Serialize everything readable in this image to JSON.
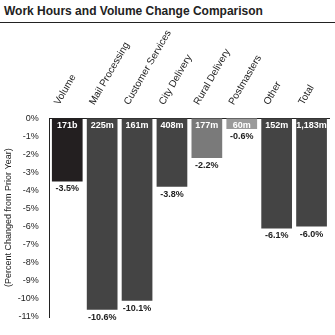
{
  "chart_data": {
    "type": "bar",
    "title": "Work Hours and Volume Change Comparison",
    "y_label": "(Percent Changed from Prior Year)",
    "categories": [
      "Volume",
      "Mail Processing",
      "Customer Services",
      "City Delivery",
      "Rural Delivery",
      "Postmasters",
      "Other",
      "Total"
    ],
    "values": [
      -3.5,
      -10.6,
      -10.1,
      -3.8,
      -2.2,
      -0.6,
      -6.1,
      -6.0
    ],
    "value_labels": [
      "-3.5%",
      "-10.6%",
      "-10.1%",
      "-3.8%",
      "-2.2%",
      "-0.6%",
      "-6.1%",
      "-6.0%"
    ],
    "annotations": [
      "171b",
      "225m",
      "161m",
      "408m",
      "177m",
      "60m",
      "152m",
      "1,183m"
    ],
    "colors": [
      "#231f20",
      "#444444",
      "#444444",
      "#444444",
      "#7a7a7a",
      "#9a9a9a",
      "#444444",
      "#444444"
    ],
    "ylim": [
      -11,
      0
    ],
    "yticks": [
      {
        "value": 0,
        "label": "0%"
      },
      {
        "value": -1,
        "label": "-1%"
      },
      {
        "value": -2,
        "label": "-2%"
      },
      {
        "value": -3,
        "label": "-3%"
      },
      {
        "value": -4,
        "label": "-4%"
      },
      {
        "value": -5,
        "label": "-5%"
      },
      {
        "value": -6,
        "label": "-6%"
      },
      {
        "value": -7,
        "label": "-7%"
      },
      {
        "value": -8,
        "label": "-8%"
      },
      {
        "value": -9,
        "label": "-9%"
      },
      {
        "value": -10,
        "label": "-10%"
      },
      {
        "value": -11,
        "label": "-11%"
      }
    ],
    "grid": false,
    "data_labels": true
  }
}
